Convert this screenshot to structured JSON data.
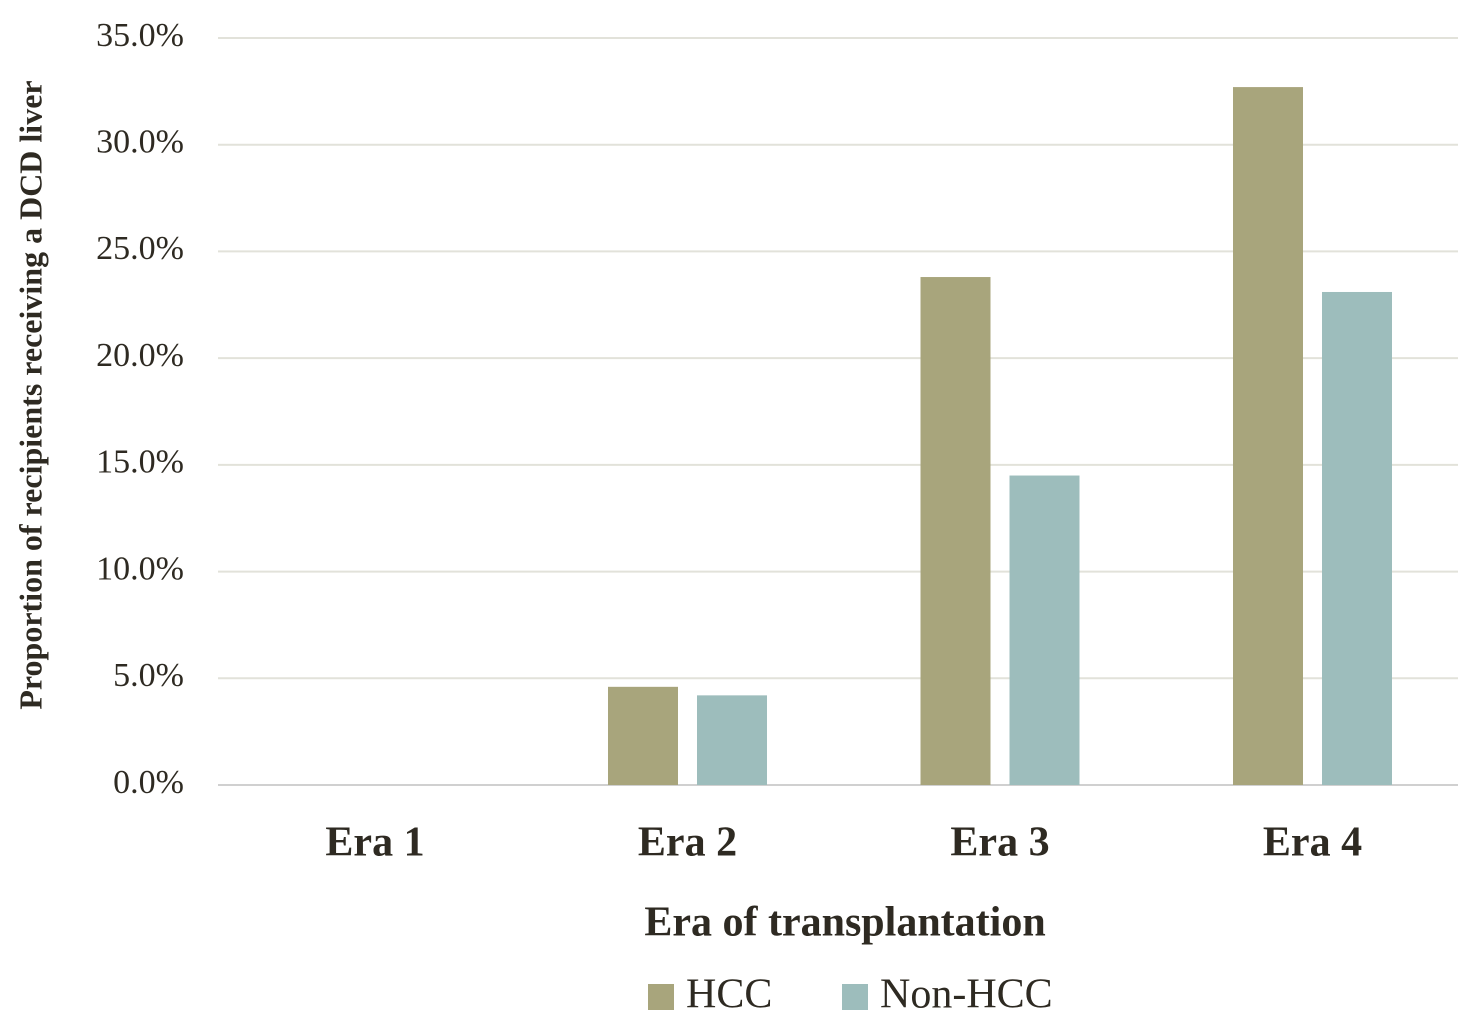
{
  "chart_data": {
    "type": "bar",
    "x_label": "Era of transplantation",
    "y_label": "Proportion of recipients receiving a DCD liver",
    "categories": [
      "Era 1",
      "Era 2",
      "Era 3",
      "Era 4"
    ],
    "series": [
      {
        "name": "HCC",
        "color": "#a8a57c",
        "values": [
          0,
          4.6,
          23.8,
          32.7
        ]
      },
      {
        "name": "Non-HCC",
        "color": "#9dbdbc",
        "values": [
          0,
          4.2,
          14.5,
          23.1
        ]
      }
    ],
    "ylim": [
      0,
      35
    ],
    "yticks": [
      {
        "value": 0,
        "label": "0.0%"
      },
      {
        "value": 5,
        "label": "5.0%"
      },
      {
        "value": 10,
        "label": "10.0%"
      },
      {
        "value": 15,
        "label": "15.0%"
      },
      {
        "value": 20,
        "label": "20.0%"
      },
      {
        "value": 25,
        "label": "25.0%"
      },
      {
        "value": 30,
        "label": "30.0%"
      },
      {
        "value": 35,
        "label": "35.0%"
      }
    ],
    "grid": true,
    "legend": "bottom"
  }
}
